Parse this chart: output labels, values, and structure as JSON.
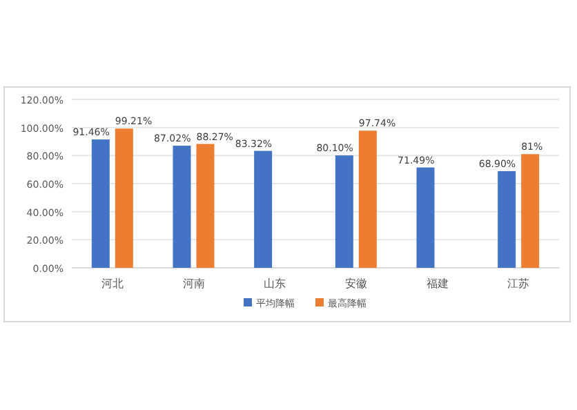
{
  "chart_data": {
    "type": "bar",
    "categories": [
      "河北",
      "河南",
      "山东",
      "安徽",
      "福建",
      "江苏"
    ],
    "series": [
      {
        "name": "平均降幅",
        "color": "#4472c4",
        "values": [
          91.46,
          87.02,
          83.32,
          80.1,
          71.49,
          68.9
        ],
        "value_labels": [
          "91.46%",
          "87.02%",
          "83.32%",
          "80.10%",
          "71.49%",
          "68.90%"
        ]
      },
      {
        "name": "最高降幅",
        "color": "#ed7d31",
        "values": [
          99.21,
          88.27,
          null,
          97.74,
          null,
          81
        ],
        "value_labels": [
          "99.21%",
          "88.27%",
          null,
          "97.74%",
          null,
          "81%"
        ]
      }
    ],
    "ylim": [
      0,
      120
    ],
    "yticks": [
      {
        "value": 0,
        "label": "0.00%"
      },
      {
        "value": 20,
        "label": "20.00%"
      },
      {
        "value": 40,
        "label": "40.00%"
      },
      {
        "value": 60,
        "label": "60.00%"
      },
      {
        "value": 80,
        "label": "80.00%"
      },
      {
        "value": 100,
        "label": "100.00%"
      },
      {
        "value": 120,
        "label": "120.00%"
      }
    ],
    "grid": "y",
    "legend": "bottom"
  }
}
